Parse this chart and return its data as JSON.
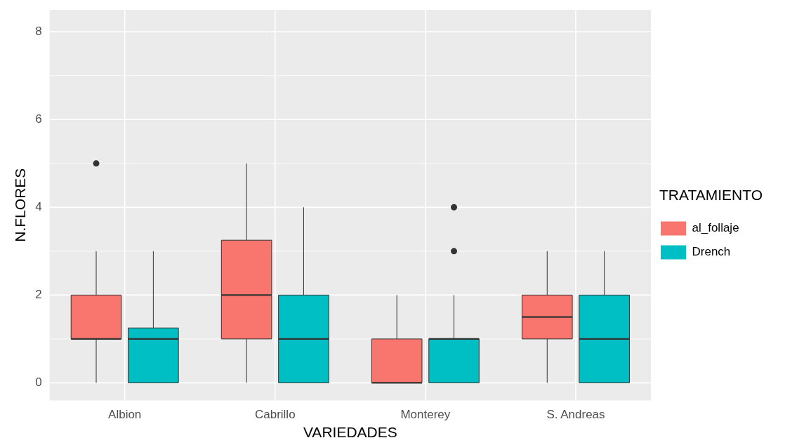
{
  "chart_data": {
    "type": "box",
    "xlabel": "VARIEDADES",
    "ylabel": "N.FLORES",
    "legend_title": "TRATAMIENTO",
    "legend": "right",
    "grid": true,
    "categories": [
      "Albion",
      "Cabrillo",
      "Monterey",
      "S. Andreas"
    ],
    "ylim": [
      -0.4,
      8.5
    ],
    "yticks": [
      0,
      2,
      4,
      6,
      8
    ],
    "series": [
      {
        "name": "al_follaje",
        "color": "#f8766d",
        "boxes": [
          {
            "low": 0,
            "q1": 1,
            "median": 1,
            "q3": 2,
            "high": 3,
            "outliers": [
              5
            ]
          },
          {
            "low": 0,
            "q1": 1,
            "median": 2,
            "q3": 3.25,
            "high": 5
          },
          {
            "low": 0,
            "q1": 0,
            "median": 0,
            "q3": 1,
            "high": 2
          },
          {
            "low": 0,
            "q1": 1,
            "median": 1.5,
            "q3": 2,
            "high": 3
          }
        ]
      },
      {
        "name": "Drench",
        "color": "#00bfc4",
        "boxes": [
          {
            "low": 0,
            "q1": 0,
            "median": 1,
            "q3": 1.25,
            "high": 3
          },
          {
            "low": 0,
            "q1": 0,
            "median": 1,
            "q3": 2,
            "high": 4
          },
          {
            "low": 0,
            "q1": 0,
            "median": 1,
            "q3": 1,
            "high": 2,
            "outliers": [
              3,
              4
            ]
          },
          {
            "low": 0,
            "q1": 0,
            "median": 1,
            "q3": 2,
            "high": 3
          }
        ]
      }
    ]
  }
}
